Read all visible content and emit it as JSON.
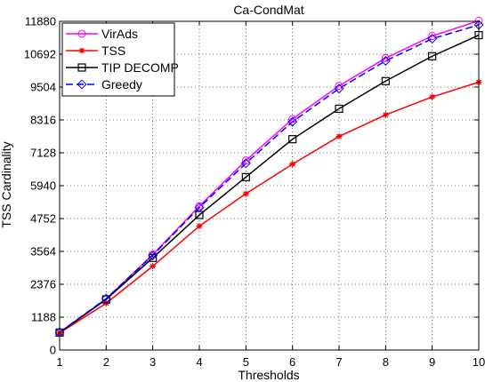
{
  "chart_data": {
    "type": "line",
    "title": "Ca-CondMat",
    "xlabel": "Thresholds",
    "ylabel": "TSS Cardinality",
    "x": [
      1,
      2,
      3,
      4,
      5,
      6,
      7,
      8,
      9,
      10
    ],
    "xlim": [
      1,
      10
    ],
    "ylim": [
      0,
      11880
    ],
    "xticks": [
      "1",
      "2",
      "3",
      "4",
      "5",
      "6",
      "7",
      "8",
      "9",
      "10"
    ],
    "yticks": [
      0,
      1188,
      2376,
      3564,
      4752,
      5940,
      7128,
      8316,
      9504,
      10692,
      11880
    ],
    "grid": true,
    "legend_position": "top-left",
    "series": [
      {
        "name": "VirAds",
        "color": "#ff00ff",
        "marker": "circle",
        "line": "solid",
        "values": [
          640,
          1850,
          3450,
          5200,
          6850,
          8350,
          9550,
          10550,
          11350,
          11900
        ]
      },
      {
        "name": "TSS",
        "color": "#ff0000",
        "marker": "star",
        "line": "solid",
        "values": [
          620,
          1690,
          3030,
          4480,
          5650,
          6720,
          7720,
          8500,
          9150,
          9680
        ]
      },
      {
        "name": "TIP DECOMP",
        "color": "#000000",
        "marker": "square",
        "line": "solid",
        "values": [
          630,
          1830,
          3330,
          4880,
          6250,
          7620,
          8720,
          9720,
          10620,
          11380
        ]
      },
      {
        "name": "Greedy",
        "color": "#0000ff",
        "marker": "diamond",
        "line": "dashed",
        "values": [
          640,
          1860,
          3420,
          5150,
          6750,
          8250,
          9450,
          10450,
          11250,
          11750
        ]
      }
    ]
  }
}
